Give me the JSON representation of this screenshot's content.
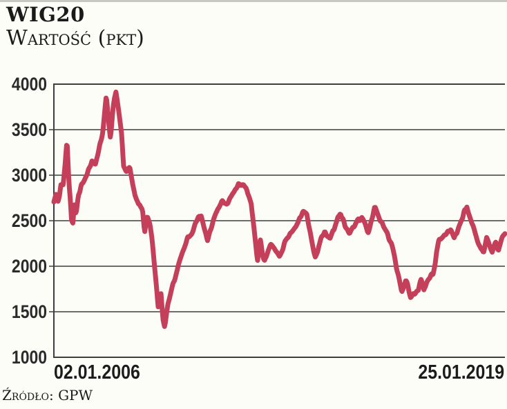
{
  "header": {
    "title": "WIG20",
    "subtitle": "Wartość (pkt)"
  },
  "footer": {
    "source": "Źródło: GPW"
  },
  "colors": {
    "line": "#c4405a",
    "grid": "#3d3d3d",
    "text": "#1b1b1b",
    "background": "#fdfdf7",
    "top_rule": "#c8c8c3"
  },
  "chart_data": {
    "type": "line",
    "title": "WIG20",
    "subtitle": "Wartość (pkt)",
    "ylabel": "Wartość (pkt)",
    "source": "Źródło: GPW",
    "x_tick_labels": [
      "02.01.2006",
      "25.01.2019"
    ],
    "x_range": [
      2006.0,
      2019.07
    ],
    "y_ticks": [
      4000,
      3500,
      3000,
      2500,
      2000,
      1500,
      1000
    ],
    "ylim": [
      1000,
      4000
    ],
    "grid": "horizontal",
    "legend": "none",
    "line_color": "#c4405a",
    "line_width": 7,
    "noise": {
      "amplitude": 46,
      "seed": 7
    },
    "series": [
      {
        "name": "WIG20",
        "points": [
          [
            2006.0,
            2720
          ],
          [
            2006.06,
            2810
          ],
          [
            2006.12,
            2740
          ],
          [
            2006.2,
            2900
          ],
          [
            2006.27,
            2860
          ],
          [
            2006.33,
            3100
          ],
          [
            2006.38,
            3350
          ],
          [
            2006.44,
            2900
          ],
          [
            2006.51,
            2505
          ],
          [
            2006.55,
            2460
          ],
          [
            2006.6,
            2700
          ],
          [
            2006.64,
            2560
          ],
          [
            2006.72,
            2800
          ],
          [
            2006.8,
            2880
          ],
          [
            2006.9,
            2960
          ],
          [
            2007.0,
            3080
          ],
          [
            2007.1,
            3150
          ],
          [
            2007.2,
            3100
          ],
          [
            2007.3,
            3250
          ],
          [
            2007.42,
            3480
          ],
          [
            2007.52,
            3890
          ],
          [
            2007.64,
            3400
          ],
          [
            2007.72,
            3730
          ],
          [
            2007.8,
            3925
          ],
          [
            2007.88,
            3700
          ],
          [
            2007.96,
            3480
          ],
          [
            2008.02,
            3130
          ],
          [
            2008.1,
            3050
          ],
          [
            2008.2,
            3100
          ],
          [
            2008.35,
            2800
          ],
          [
            2008.5,
            2650
          ],
          [
            2008.58,
            2600
          ],
          [
            2008.63,
            2380
          ],
          [
            2008.7,
            2520
          ],
          [
            2008.78,
            2450
          ],
          [
            2008.85,
            2300
          ],
          [
            2008.94,
            1900
          ],
          [
            2009.02,
            1520
          ],
          [
            2009.1,
            1720
          ],
          [
            2009.17,
            1400
          ],
          [
            2009.21,
            1345
          ],
          [
            2009.3,
            1600
          ],
          [
            2009.42,
            1780
          ],
          [
            2009.58,
            1980
          ],
          [
            2009.76,
            2180
          ],
          [
            2009.94,
            2350
          ],
          [
            2010.05,
            2420
          ],
          [
            2010.27,
            2550
          ],
          [
            2010.45,
            2280
          ],
          [
            2010.6,
            2450
          ],
          [
            2010.75,
            2600
          ],
          [
            2010.87,
            2700
          ],
          [
            2011.0,
            2650
          ],
          [
            2011.1,
            2720
          ],
          [
            2011.2,
            2800
          ],
          [
            2011.35,
            2940
          ],
          [
            2011.5,
            2900
          ],
          [
            2011.65,
            2780
          ],
          [
            2011.72,
            2700
          ],
          [
            2011.9,
            2080
          ],
          [
            2011.98,
            2305
          ],
          [
            2012.1,
            2030
          ],
          [
            2012.28,
            2250
          ],
          [
            2012.54,
            2105
          ],
          [
            2012.8,
            2320
          ],
          [
            2013.06,
            2450
          ],
          [
            2013.22,
            2630
          ],
          [
            2013.33,
            2580
          ],
          [
            2013.5,
            2230
          ],
          [
            2013.58,
            2105
          ],
          [
            2013.85,
            2380
          ],
          [
            2014.0,
            2300
          ],
          [
            2014.3,
            2605
          ],
          [
            2014.57,
            2350
          ],
          [
            2014.92,
            2550
          ],
          [
            2015.1,
            2350
          ],
          [
            2015.3,
            2630
          ],
          [
            2015.43,
            2555
          ],
          [
            2015.6,
            2400
          ],
          [
            2015.78,
            2250
          ],
          [
            2015.94,
            1930
          ],
          [
            2016.08,
            1693
          ],
          [
            2016.2,
            1850
          ],
          [
            2016.33,
            1650
          ],
          [
            2016.56,
            1705
          ],
          [
            2016.65,
            1850
          ],
          [
            2016.72,
            1730
          ],
          [
            2016.8,
            1820
          ],
          [
            2016.9,
            1870
          ],
          [
            2016.98,
            1950
          ],
          [
            2017.16,
            2280
          ],
          [
            2017.33,
            2350
          ],
          [
            2017.5,
            2400
          ],
          [
            2017.6,
            2300
          ],
          [
            2017.77,
            2450
          ],
          [
            2017.88,
            2550
          ],
          [
            2017.97,
            2655
          ],
          [
            2018.12,
            2450
          ],
          [
            2018.28,
            2255
          ],
          [
            2018.45,
            2130
          ],
          [
            2018.54,
            2300
          ],
          [
            2018.7,
            2150
          ],
          [
            2018.8,
            2280
          ],
          [
            2018.88,
            2180
          ],
          [
            2018.98,
            2320
          ],
          [
            2019.07,
            2380
          ]
        ]
      }
    ]
  }
}
